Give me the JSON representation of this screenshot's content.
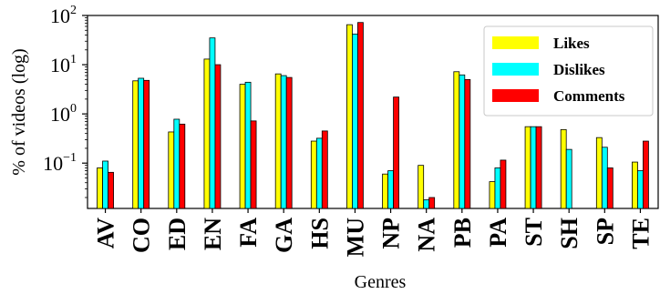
{
  "chart_data": {
    "type": "bar",
    "scale_y": "log",
    "ylabel": "% of videos (log)",
    "xlabel": "Genres",
    "ylim": [
      0.012,
      100
    ],
    "yticks": [
      {
        "value": 100,
        "base": "10",
        "exp": "2"
      },
      {
        "value": 10,
        "base": "10",
        "exp": "1"
      },
      {
        "value": 1,
        "base": "10",
        "exp": "0"
      },
      {
        "value": 0.1,
        "base": "10",
        "exp": "−1"
      }
    ],
    "categories": [
      "AV",
      "CO",
      "ED",
      "EN",
      "FA",
      "GA",
      "HS",
      "MU",
      "NP",
      "NA",
      "PB",
      "PA",
      "ST",
      "SH",
      "SP",
      "TE"
    ],
    "legend_position": "top-right",
    "series": [
      {
        "name": "Likes",
        "color": "#ffff00",
        "values": [
          0.08,
          4.7,
          0.43,
          13,
          4.0,
          6.5,
          0.28,
          65,
          0.06,
          0.09,
          7.2,
          0.042,
          0.55,
          0.48,
          0.33,
          0.105
        ]
      },
      {
        "name": "Dislikes",
        "color": "#00ffff",
        "values": [
          0.11,
          5.3,
          0.78,
          35,
          4.4,
          6.0,
          0.32,
          42,
          0.07,
          0.018,
          6.2,
          0.08,
          0.55,
          0.19,
          0.21,
          0.07
        ]
      },
      {
        "name": "Comments",
        "color": "#ff0000",
        "values": [
          0.065,
          4.8,
          0.62,
          10,
          0.72,
          5.5,
          0.45,
          72,
          2.2,
          0.02,
          5.0,
          0.115,
          0.55,
          null,
          0.08,
          0.28
        ]
      }
    ]
  }
}
